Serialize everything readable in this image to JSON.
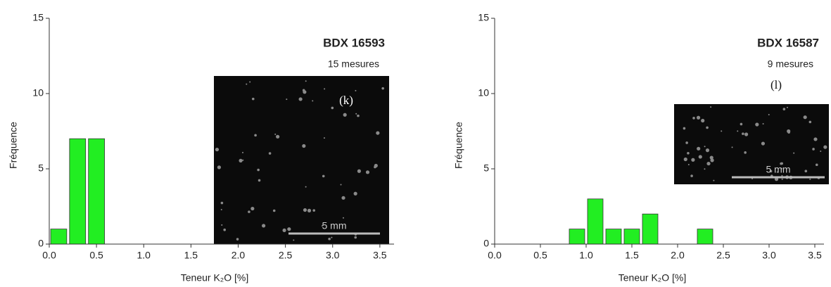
{
  "chart_data": [
    {
      "type": "histogram",
      "title": "BDX 16593",
      "subtitle": "15 mesures",
      "annotation": "(k)",
      "scale_label": "5 mm",
      "xlabel": "Teneur K₂O [%]",
      "ylabel": "Fréquence",
      "bins": [
        0,
        0.2,
        0.4,
        0.6
      ],
      "counts": [
        1,
        7,
        7
      ],
      "color": "#22ee22",
      "xlim": [
        0,
        3.65
      ],
      "ylim": [
        0,
        15
      ],
      "xticks": [
        {
          "value": 0,
          "label": "0.0"
        },
        0.5,
        {
          "value": 1,
          "label": "1.0"
        },
        1.5,
        {
          "value": 2,
          "label": "2.0"
        },
        2.5,
        {
          "value": 3,
          "label": "3.0"
        },
        3.5
      ],
      "yticks": [
        0,
        5,
        10,
        15
      ]
    },
    {
      "type": "histogram",
      "title": "BDX 16587",
      "subtitle": "9 mesures",
      "annotation": "(l)",
      "scale_label": "5 mm",
      "xlabel": "Teneur K₂O [%]",
      "ylabel": "Fréquence",
      "bins": [
        0.8,
        1.0,
        1.2,
        1.4,
        1.6,
        1.8,
        2.0,
        2.2,
        2.4
      ],
      "counts": [
        1,
        3,
        1,
        1,
        2,
        0,
        0,
        1
      ],
      "color": "#22ee22",
      "xlim": [
        0,
        3.6
      ],
      "ylim": [
        0,
        15
      ],
      "xticks": [
        {
          "value": 0,
          "label": "0.0"
        },
        0.5,
        {
          "value": 1,
          "label": "1.0"
        },
        1.5,
        {
          "value": 2,
          "label": "2.0"
        },
        2.5,
        {
          "value": 3,
          "label": "3.0"
        },
        3.5
      ],
      "yticks": [
        0,
        5,
        10,
        15
      ]
    }
  ]
}
